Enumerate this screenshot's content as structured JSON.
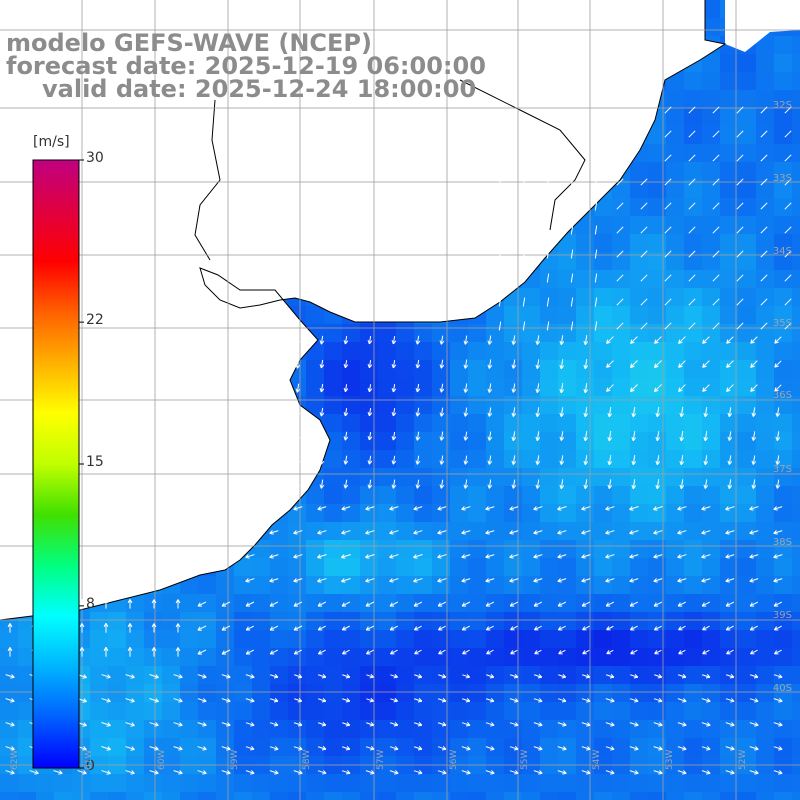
{
  "title": {
    "line1": "modelo GEFS-WAVE (NCEP)",
    "line2": "forecast date: 2025-12-19 06:00:00",
    "line3": "valid date: 2025-12-24 18:00:00"
  },
  "colorbar": {
    "unit": "[m/s]",
    "min": 0,
    "max": 30,
    "ticks": [
      {
        "label": "30",
        "value": 30
      },
      {
        "label": "22",
        "value": 22
      },
      {
        "label": "15",
        "value": 15
      },
      {
        "label": "8",
        "value": 8
      },
      {
        "label": "0",
        "value": 0
      }
    ],
    "colors": [
      "#0000ff",
      "#0060ff",
      "#00b4ff",
      "#00ffff",
      "#00ff80",
      "#40e000",
      "#c0ff00",
      "#ffff00",
      "#ffb000",
      "#ff6000",
      "#ff0000",
      "#e00040",
      "#c00080"
    ]
  },
  "map": {
    "lat_labels": [
      "32S",
      "33S",
      "34S",
      "35S",
      "36S",
      "37S",
      "38S",
      "39S",
      "40S"
    ],
    "lon_labels": [
      "62W",
      "61W",
      "60W",
      "59W",
      "58W",
      "57W",
      "56W",
      "55W",
      "54W",
      "53W",
      "52W"
    ],
    "ocean_color_deep": "#0a28e6",
    "ocean_color_mid": "#0a6cf0",
    "ocean_color_light": "#18c8f0",
    "land_color": "#ffffff",
    "grid_color": "#a0a0a0",
    "coast_color": "#000000",
    "arrow_color": "#ffffff"
  }
}
